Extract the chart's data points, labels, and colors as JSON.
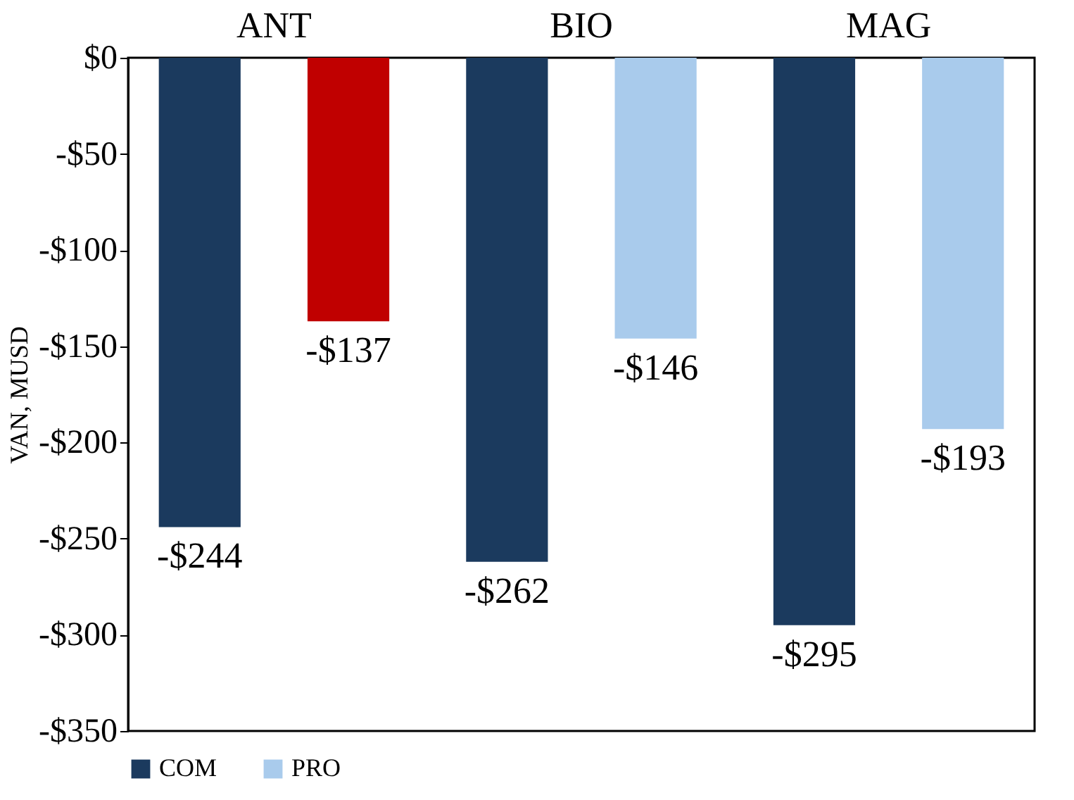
{
  "chart_data": {
    "type": "bar",
    "ylabel": "VAN, MUSD",
    "categories": [
      "ANT",
      "BIO",
      "MAG"
    ],
    "series": [
      {
        "name": "COM",
        "color": "#1b3a5e",
        "values": [
          -244,
          -262,
          -295
        ],
        "value_labels": [
          "-$244",
          "-$262",
          "-$295"
        ]
      },
      {
        "name": "PRO",
        "color": "#a9cbec",
        "colors": [
          "#c00000",
          "#a9cbec",
          "#a9cbec"
        ],
        "values": [
          -137,
          -146,
          -193
        ],
        "value_labels": [
          "-$137",
          "-$146",
          "-$193"
        ]
      }
    ],
    "ylim": [
      -350,
      0
    ],
    "yticks": [
      {
        "value": 0,
        "label": "$0"
      },
      {
        "value": -50,
        "label": "-$50"
      },
      {
        "value": -100,
        "label": "-$100"
      },
      {
        "value": -150,
        "label": "-$150"
      },
      {
        "value": -200,
        "label": "-$200"
      },
      {
        "value": -250,
        "label": "-$250"
      },
      {
        "value": -300,
        "label": "-$300"
      },
      {
        "value": -350,
        "label": "-$350"
      }
    ],
    "legend": "bottom",
    "grid": false
  }
}
